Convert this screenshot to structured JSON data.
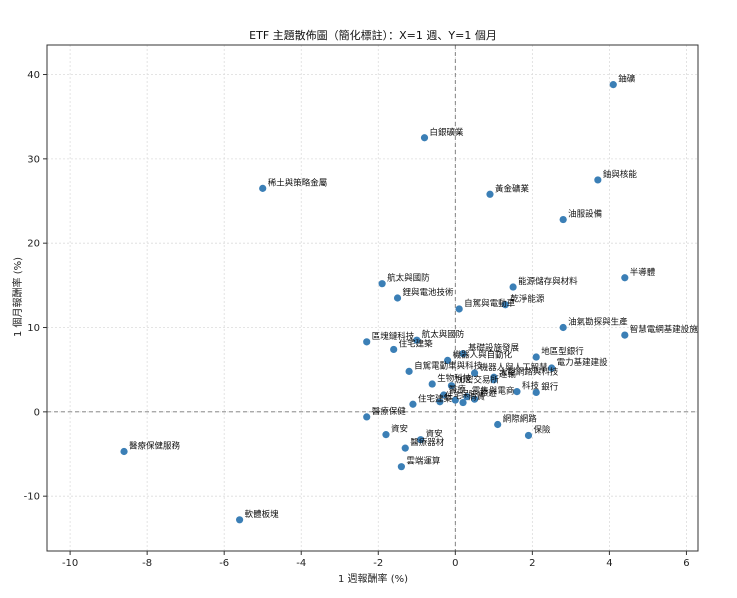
{
  "chart_data": {
    "type": "scatter",
    "title": "ETF 主題散佈圖（簡化標註）：X=1 週、Y=1 個月",
    "xlabel": "1 週報酬率 (%)",
    "ylabel": "1 個月報酬率 (%)",
    "xlim": [
      -10.6,
      6.3
    ],
    "ylim": [
      -16.5,
      43.5
    ],
    "xticks": [
      -10,
      -8,
      -6,
      -4,
      -2,
      0,
      2,
      4,
      6
    ],
    "yticks": [
      -10,
      0,
      10,
      20,
      30,
      40
    ],
    "grid": true,
    "reference_lines": {
      "x": 0,
      "y": 0
    },
    "point_color": "#3b7fb6",
    "points": [
      {
        "label": "鈾礦",
        "x": 4.1,
        "y": 38.8
      },
      {
        "label": "白銀礦業",
        "x": -0.8,
        "y": 32.5
      },
      {
        "label": "稀土與策略金屬",
        "x": -5.0,
        "y": 26.5
      },
      {
        "label": "鈾與核能",
        "x": 3.7,
        "y": 27.5
      },
      {
        "label": "黃金礦業",
        "x": 0.9,
        "y": 25.8
      },
      {
        "label": "油服設備",
        "x": 2.8,
        "y": 22.8
      },
      {
        "label": "半導體",
        "x": 4.4,
        "y": 15.9
      },
      {
        "label": "航太與國防",
        "x": -1.9,
        "y": 15.2
      },
      {
        "label": "能源儲存與材料",
        "x": 1.5,
        "y": 14.8
      },
      {
        "label": "鋰與電池技術",
        "x": -1.5,
        "y": 13.5
      },
      {
        "label": "乾淨能源",
        "x": 1.3,
        "y": 12.7
      },
      {
        "label": "自駕與電動車",
        "x": 0.1,
        "y": 12.2
      },
      {
        "label": "油氣勘探與生產",
        "x": 2.8,
        "y": 10.0
      },
      {
        "label": "智慧電網基建設施",
        "x": 4.4,
        "y": 9.1
      },
      {
        "label": "區塊鏈科技",
        "x": -2.3,
        "y": 8.3
      },
      {
        "label": "航太與國防",
        "x": -1.0,
        "y": 8.5
      },
      {
        "label": "住宅建築",
        "x": -1.6,
        "y": 7.4
      },
      {
        "label": "基礎設施發展",
        "x": 0.2,
        "y": 6.9
      },
      {
        "label": "地區型銀行",
        "x": 2.1,
        "y": 6.5
      },
      {
        "label": "機器人與自動化",
        "x": -0.2,
        "y": 6.1
      },
      {
        "label": "電力基建建設",
        "x": 2.5,
        "y": 5.2
      },
      {
        "label": "自駕電動車與科技",
        "x": -1.2,
        "y": 4.8
      },
      {
        "label": "機器人與人工智慧",
        "x": 0.5,
        "y": 4.6
      },
      {
        "label": "大型網路與科技",
        "x": 1.0,
        "y": 4.1
      },
      {
        "label": "運輸",
        "x": 1.0,
        "y": 3.8
      },
      {
        "label": "生物科技",
        "x": -0.6,
        "y": 3.3
      },
      {
        "label": "加密交易所",
        "x": -0.1,
        "y": 3.1
      },
      {
        "label": "科技",
        "x": 1.6,
        "y": 2.4
      },
      {
        "label": "銀行",
        "x": 2.1,
        "y": 2.3
      },
      {
        "label": "醫療",
        "x": -0.3,
        "y": 2.0
      },
      {
        "label": "零售與電商",
        "x": 0.3,
        "y": 1.8
      },
      {
        "label": "旅遊",
        "x": 0.5,
        "y": 1.5
      },
      {
        "label": "住宅",
        "x": -0.4,
        "y": 1.2
      },
      {
        "label": "保險",
        "x": 0.0,
        "y": 1.4
      },
      {
        "label": "消費",
        "x": 0.2,
        "y": 1.1
      },
      {
        "label": "住宅建築",
        "x": -1.1,
        "y": 0.9
      },
      {
        "label": "醫療保健",
        "x": -2.3,
        "y": -0.6
      },
      {
        "label": "網際網路",
        "x": 1.1,
        "y": -1.5
      },
      {
        "label": "資安",
        "x": -1.8,
        "y": -2.7
      },
      {
        "label": "保險",
        "x": 1.9,
        "y": -2.8
      },
      {
        "label": "資安",
        "x": -0.9,
        "y": -3.3
      },
      {
        "label": "醫療器材",
        "x": -1.3,
        "y": -4.3
      },
      {
        "label": "醫療保健服務",
        "x": -8.6,
        "y": -4.7
      },
      {
        "label": "雲端運算",
        "x": -1.4,
        "y": -6.5
      },
      {
        "label": "軟體板塊",
        "x": -5.6,
        "y": -12.8
      }
    ]
  }
}
